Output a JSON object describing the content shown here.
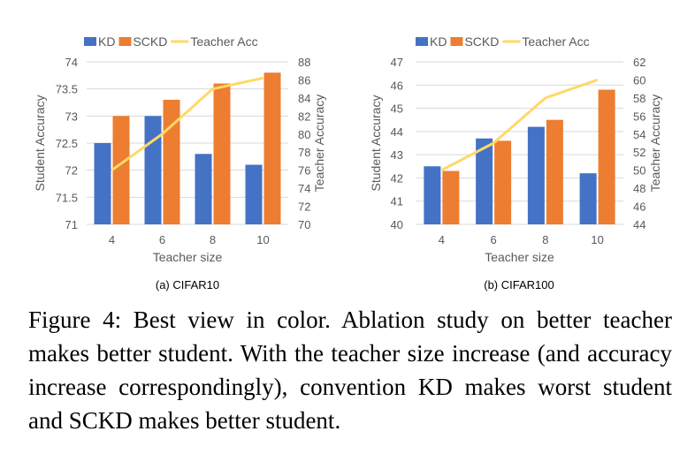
{
  "figure": {
    "caption": "Figure 4:  Best view in color.  Ablation study on better teacher makes better student. With the teacher size increase (and accuracy increase correspondingly), convention KD makes worst student and SCKD makes better student."
  },
  "colors": {
    "kd": "#4472c4",
    "sckd": "#ed7d31",
    "teacher": "#ffd966",
    "grid": "#d9d9d9",
    "text": "#595959"
  },
  "chart_data": [
    {
      "type": "bar",
      "subtitle": "(a) CIFAR10",
      "xlabel": "Teacher size",
      "ylabel": "Student Accuracy",
      "y2label": "Teacher Accuracy",
      "categories": [
        "4",
        "6",
        "8",
        "10"
      ],
      "ylim": [
        71,
        74
      ],
      "yticks": [
        "71",
        "71.5",
        "72",
        "72.5",
        "73",
        "73.5",
        "74"
      ],
      "y2lim": [
        70,
        88
      ],
      "y2ticks": [
        "70",
        "72",
        "74",
        "76",
        "78",
        "80",
        "82",
        "84",
        "86",
        "88"
      ],
      "grid": true,
      "legend_position": "top",
      "series": [
        {
          "name": "KD",
          "kind": "bar",
          "axis": "left",
          "values": [
            72.5,
            73.0,
            72.3,
            72.1
          ]
        },
        {
          "name": "SCKD",
          "kind": "bar",
          "axis": "left",
          "values": [
            73.0,
            73.3,
            73.6,
            73.8
          ]
        },
        {
          "name": "Teacher Acc",
          "kind": "line",
          "axis": "right",
          "values": [
            76.0,
            80.0,
            85.0,
            86.2
          ]
        }
      ]
    },
    {
      "type": "bar",
      "subtitle": "(b) CIFAR100",
      "xlabel": "Teacher size",
      "ylabel": "Student Accuracy",
      "y2label": "Teacher Accuracy",
      "categories": [
        "4",
        "6",
        "8",
        "10"
      ],
      "ylim": [
        40,
        47
      ],
      "yticks": [
        "40",
        "41",
        "42",
        "43",
        "44",
        "45",
        "46",
        "47"
      ],
      "y2lim": [
        44,
        62
      ],
      "y2ticks": [
        "44",
        "46",
        "48",
        "50",
        "52",
        "54",
        "56",
        "58",
        "60",
        "62"
      ],
      "grid": true,
      "legend_position": "top",
      "series": [
        {
          "name": "KD",
          "kind": "bar",
          "axis": "left",
          "values": [
            42.5,
            43.7,
            44.2,
            42.2
          ]
        },
        {
          "name": "SCKD",
          "kind": "bar",
          "axis": "left",
          "values": [
            42.3,
            43.6,
            44.5,
            45.8
          ]
        },
        {
          "name": "Teacher Acc",
          "kind": "line",
          "axis": "right",
          "values": [
            50.0,
            53.0,
            58.0,
            60.0
          ]
        }
      ]
    }
  ]
}
